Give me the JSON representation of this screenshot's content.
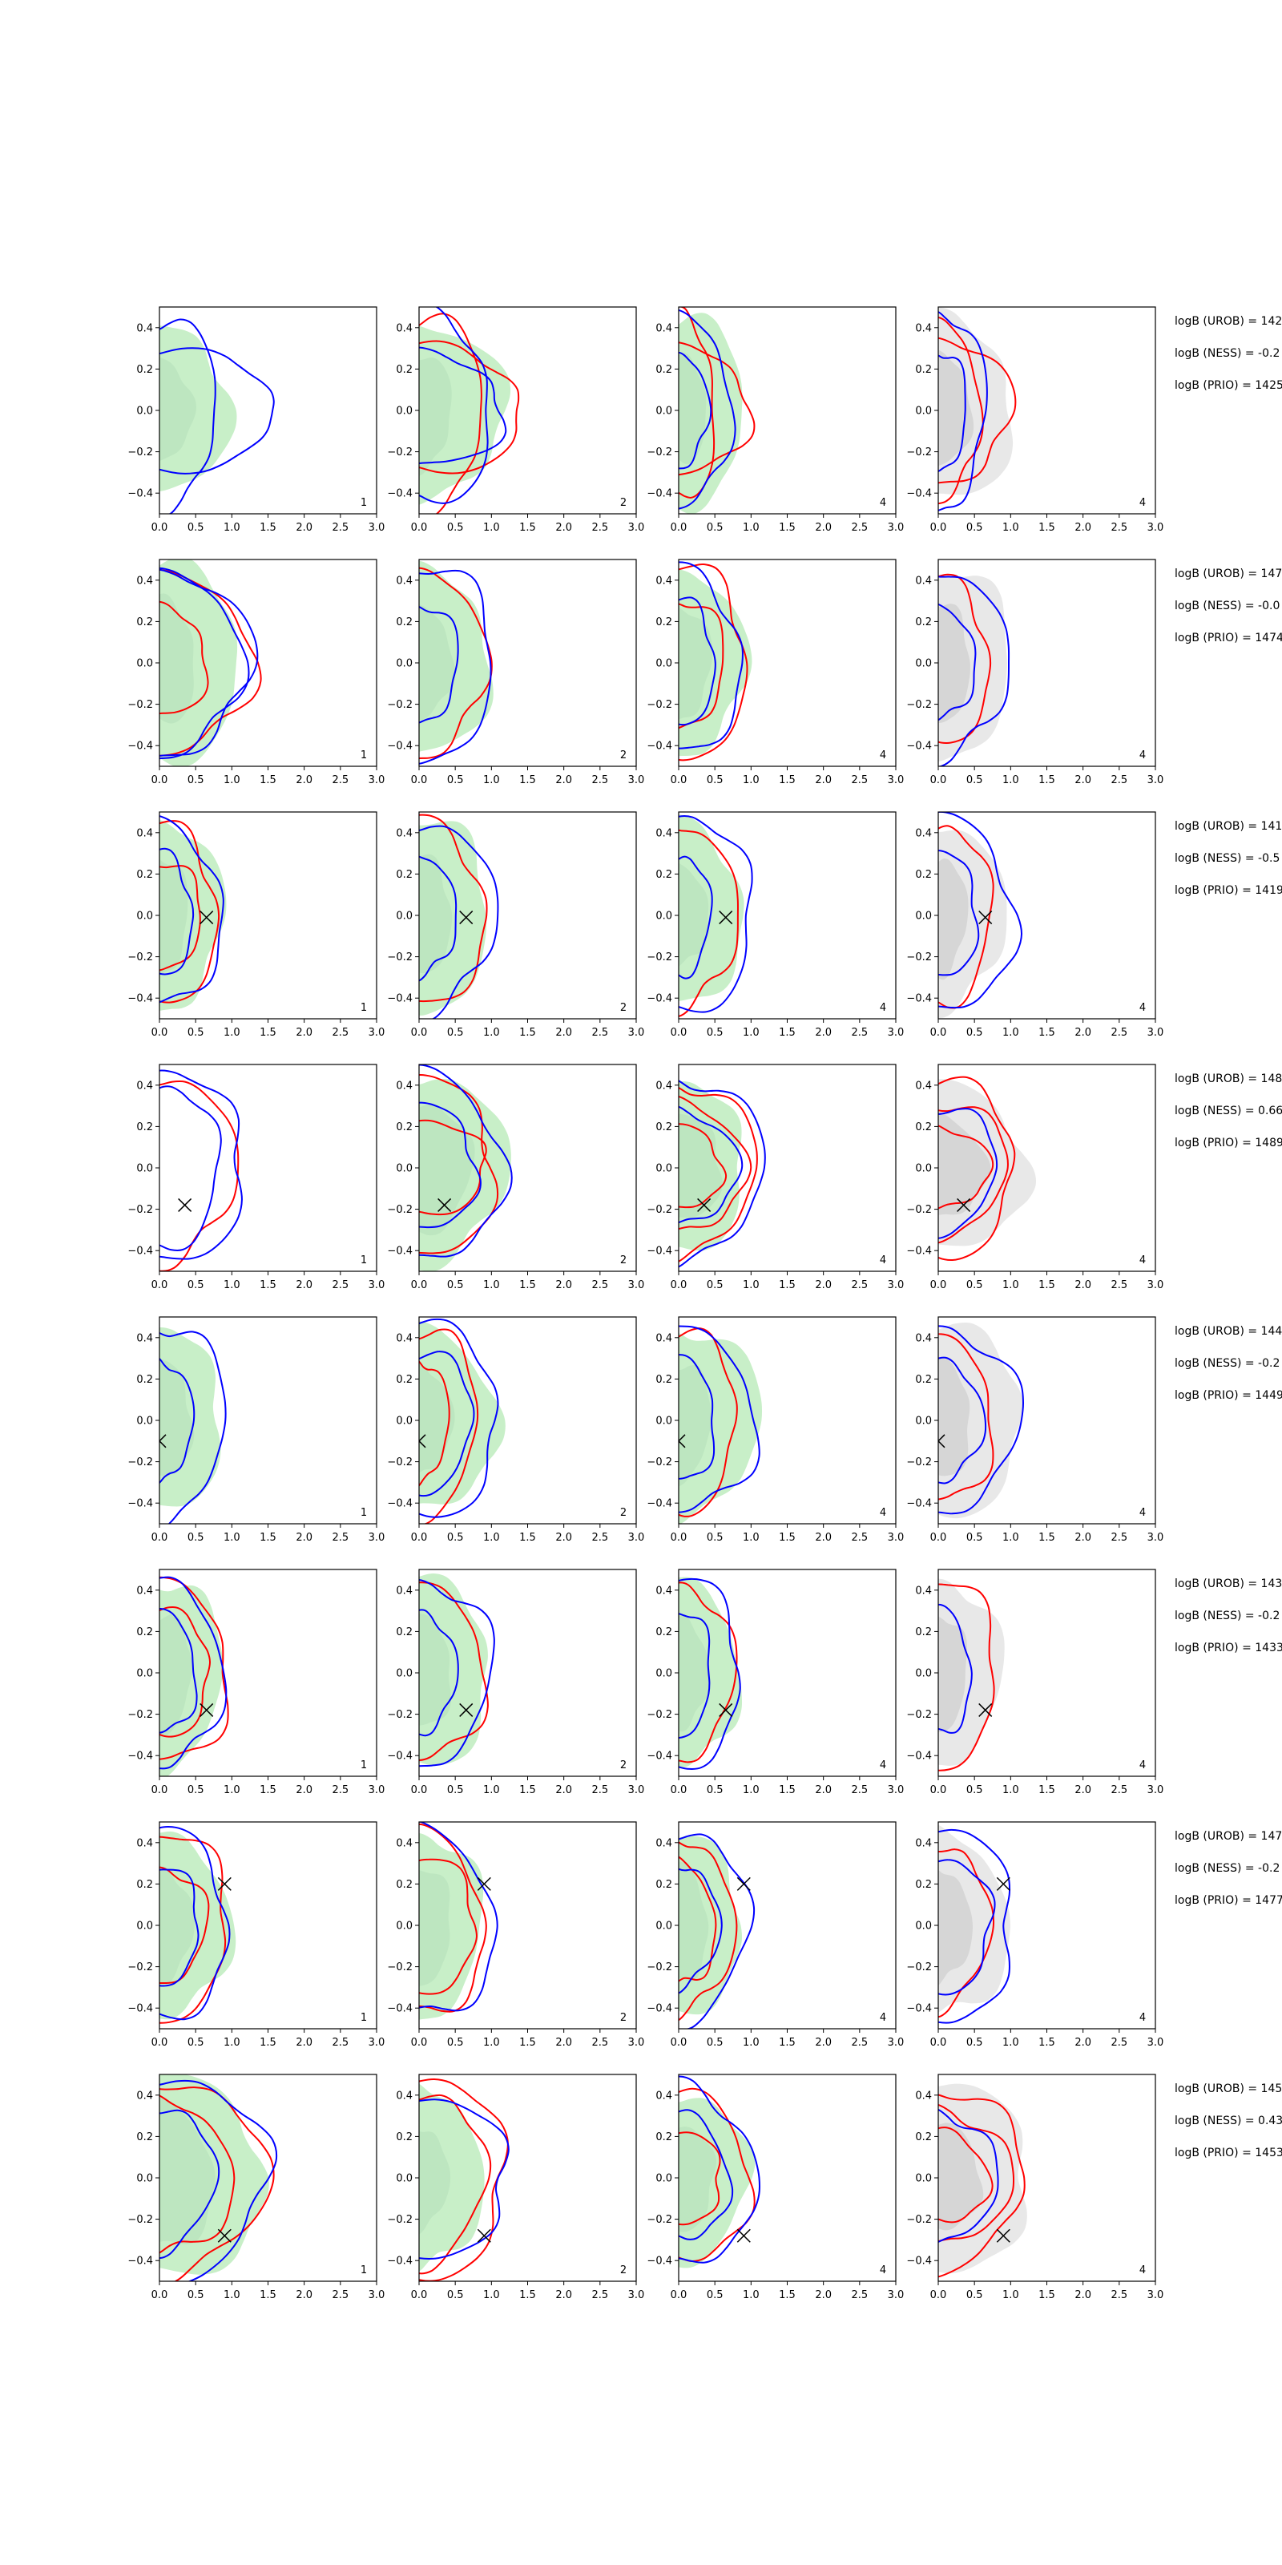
{
  "chart_data": {
    "type": "grid of 2D contour panels (8 rows x 4 columns)",
    "xlim": [
      0.0,
      3.0
    ],
    "ylim": [
      -0.5,
      0.5
    ],
    "x_ticks": [
      "0.0",
      "0.5",
      "1.0",
      "1.5",
      "2.0",
      "2.5",
      "3.0"
    ],
    "y_ticks": [
      "0.4",
      "0.2",
      "0.0",
      "−0.2",
      "−0.4"
    ],
    "grid": false,
    "legend": "none",
    "column_tags": [
      "1",
      "2",
      "4",
      "4"
    ],
    "colors": {
      "blue_contour": "#0000ff",
      "red_contour": "#ff0000",
      "green_fill": "#c8efc8",
      "green_fill_inner": "#bde6c0",
      "grey_fill": "#e8e8e8",
      "grey_fill_inner": "#d6d6d6",
      "axes": "#000000"
    },
    "rows": [
      {
        "marker": null,
        "annotations": [
          "logB (UROB) = 142",
          "logB (NESS) = -0.2",
          "logB (PRIO) = 1425"
        ],
        "panels": [
          {
            "fill": "green",
            "fill_outer": [
              0.95,
              0.4
            ],
            "fill_inner": [
              0.45,
              0.25
            ],
            "blue": [
              [
                0.8,
                0.45
              ],
              [
                1.65,
                0.28
              ]
            ],
            "red": []
          },
          {
            "fill": "green",
            "fill_outer": [
              1.15,
              0.43
            ],
            "fill_inner": [
              0.45,
              0.28
            ],
            "blue": [
              [
                1.0,
                0.46
              ],
              [
                1.15,
                0.28
              ]
            ],
            "red": [
              [
                0.9,
                0.46
              ],
              [
                1.45,
                0.3
              ]
            ]
          },
          {
            "fill": "green",
            "fill_outer": [
              0.9,
              0.45
            ],
            "fill_inner": [
              0.4,
              0.25
            ],
            "blue": [
              [
                0.7,
                0.48
              ],
              [
                0.4,
                0.28
              ]
            ],
            "red": [
              [
                0.5,
                0.45
              ],
              [
                0.95,
                0.32
              ]
            ]
          },
          {
            "fill": "grey",
            "fill_outer": [
              1.0,
              0.45
            ],
            "fill_inner": [
              0.45,
              0.28
            ],
            "blue": [
              [
                0.65,
                0.48
              ],
              [
                0.4,
                0.28
              ]
            ],
            "red": [
              [
                0.55,
                0.45
              ],
              [
                1.0,
                0.35
              ]
            ]
          }
        ]
      },
      {
        "marker": null,
        "annotations": [
          "logB (UROB) = 147",
          "logB (NESS) = -0.0",
          "logB (PRIO) = 1474"
        ],
        "panels": [
          {
            "fill": "green",
            "fill_outer": [
              1.1,
              0.47
            ],
            "fill_inner": [
              0.5,
              0.3
            ],
            "blue": [
              [
                1.1,
                0.46
              ],
              [
                1.25,
                0.45
              ]
            ],
            "red": [
              [
                0.65,
                0.27
              ],
              [
                1.25,
                0.45
              ]
            ]
          },
          {
            "fill": "green",
            "fill_outer": [
              0.95,
              0.46
            ],
            "fill_inner": [
              0.45,
              0.28
            ],
            "blue": [
              [
                0.55,
                0.28
              ],
              [
                1.05,
                0.46
              ]
            ],
            "red": [
              [
                0.9,
                0.46
              ]
            ]
          },
          {
            "fill": "green",
            "fill_outer": [
              0.9,
              0.45
            ],
            "fill_inner": [
              0.45,
              0.27
            ],
            "blue": [
              [
                0.5,
                0.3
              ],
              [
                0.85,
                0.45
              ]
            ],
            "red": [
              [
                0.65,
                0.3
              ],
              [
                0.95,
                0.46
              ]
            ]
          },
          {
            "fill": "grey",
            "fill_outer": [
              1.0,
              0.45
            ],
            "fill_inner": [
              0.45,
              0.28
            ],
            "blue": [
              [
                0.5,
                0.28
              ],
              [
                0.95,
                0.46
              ]
            ],
            "red": [
              [
                0.7,
                0.4
              ]
            ]
          }
        ]
      },
      {
        "marker": [
          0.65,
          -0.01
        ],
        "annotations": [
          "logB (UROB) = 141",
          "logB (NESS) = -0.5",
          "logB (PRIO) = 1419"
        ],
        "panels": [
          {
            "fill": "green",
            "fill_outer": [
              0.85,
              0.46
            ],
            "fill_inner": [
              0.4,
              0.28
            ],
            "blue": [
              [
                0.45,
                0.3
              ],
              [
                0.85,
                0.45
              ]
            ],
            "red": [
              [
                0.6,
                0.25
              ],
              [
                0.8,
                0.43
              ]
            ]
          },
          {
            "fill": "green",
            "fill_outer": [
              0.95,
              0.46
            ],
            "fill_inner": [
              0.45,
              0.28
            ],
            "blue": [
              [
                0.5,
                0.3
              ],
              [
                1.05,
                0.46
              ]
            ],
            "red": [
              [
                0.9,
                0.45
              ]
            ]
          },
          {
            "fill": "green",
            "fill_outer": [
              0.85,
              0.45
            ],
            "fill_inner": [
              0.4,
              0.25
            ],
            "blue": [
              [
                0.45,
                0.28
              ],
              [
                1.05,
                0.46
              ]
            ],
            "red": [
              [
                0.8,
                0.45
              ]
            ]
          },
          {
            "fill": "grey",
            "fill_outer": [
              0.9,
              0.45
            ],
            "fill_inner": [
              0.4,
              0.28
            ],
            "blue": [
              [
                0.55,
                0.3
              ],
              [
                1.05,
                0.47
              ]
            ],
            "red": [
              [
                0.75,
                0.42
              ]
            ]
          }
        ]
      },
      {
        "marker": [
          0.35,
          -0.18
        ],
        "annotations": [
          "logB (UROB) = 148",
          "logB (NESS) = 0.66",
          "logB (PRIO) = 1489"
        ],
        "panels": [
          {
            "fill": "none",
            "fill_outer": null,
            "fill_inner": null,
            "blue": [
              [
                0.85,
                0.38
              ],
              [
                1.2,
                0.45
              ]
            ],
            "red": [
              [
                1.05,
                0.45
              ]
            ]
          },
          {
            "fill": "green",
            "fill_outer": [
              1.2,
              0.45
            ],
            "fill_inner": [
              0.75,
              0.3
            ],
            "blue": [
              [
                0.8,
                0.3
              ],
              [
                1.15,
                0.46
              ]
            ],
            "red": [
              [
                0.95,
                0.22
              ],
              [
                1.05,
                0.43
              ]
            ]
          },
          {
            "fill": "green",
            "fill_outer": [
              0.9,
              0.4
            ],
            "fill_inner": [
              0.6,
              0.25
            ],
            "blue": [
              [
                0.8,
                0.28
              ],
              [
                1.15,
                0.45
              ]
            ],
            "red": [
              [
                0.6,
                0.2
              ],
              [
                0.9,
                0.32
              ],
              [
                1.05,
                0.42
              ]
            ]
          },
          {
            "fill": "grey",
            "fill_outer": [
              1.2,
              0.4
            ],
            "fill_inner": [
              0.65,
              0.25
            ],
            "blue": [
              [
                0.8,
                0.3
              ]
            ],
            "red": [
              [
                0.7,
                0.2
              ],
              [
                0.95,
                0.32
              ],
              [
                1.05,
                0.42
              ]
            ]
          }
        ]
      },
      {
        "marker": [
          0.0,
          -0.1
        ],
        "annotations": [
          "logB (UROB) = 144",
          "logB (NESS) = -0.2",
          "logB (PRIO) = 1449"
        ],
        "panels": [
          {
            "fill": "green",
            "fill_outer": [
              0.85,
              0.43
            ],
            "fill_inner": [
              0.45,
              0.28
            ],
            "blue": [
              [
                0.45,
                0.3
              ],
              [
                0.9,
                0.48
              ]
            ],
            "red": []
          },
          {
            "fill": "green",
            "fill_outer": [
              1.05,
              0.44
            ],
            "fill_inner": [
              0.45,
              0.27
            ],
            "blue": [
              [
                0.75,
                0.33
              ],
              [
                1.1,
                0.46
              ]
            ],
            "red": [
              [
                0.4,
                0.3
              ],
              [
                0.8,
                0.45
              ]
            ]
          },
          {
            "fill": "green",
            "fill_outer": [
              1.1,
              0.46
            ],
            "fill_inner": [
              0.45,
              0.28
            ],
            "blue": [
              [
                0.5,
                0.3
              ],
              [
                1.05,
                0.45
              ]
            ],
            "red": [
              [
                0.8,
                0.43
              ]
            ]
          },
          {
            "fill": "grey",
            "fill_outer": [
              1.15,
              0.45
            ],
            "fill_inner": [
              0.45,
              0.28
            ],
            "blue": [
              [
                0.6,
                0.3
              ],
              [
                1.1,
                0.45
              ]
            ],
            "red": [
              [
                0.75,
                0.4
              ]
            ]
          }
        ]
      },
      {
        "marker": [
          0.65,
          -0.18
        ],
        "annotations": [
          "logB (UROB) = 143",
          "logB (NESS) = -0.2",
          "logB (PRIO) = 1433"
        ],
        "panels": [
          {
            "fill": "green",
            "fill_outer": [
              0.85,
              0.46
            ],
            "fill_inner": [
              0.45,
              0.28
            ],
            "blue": [
              [
                0.5,
                0.3
              ],
              [
                0.85,
                0.46
              ]
            ],
            "red": [
              [
                0.7,
                0.3
              ],
              [
                0.95,
                0.44
              ]
            ]
          },
          {
            "fill": "green",
            "fill_outer": [
              0.95,
              0.45
            ],
            "fill_inner": [
              0.45,
              0.27
            ],
            "blue": [
              [
                0.5,
                0.3
              ],
              [
                1.0,
                0.45
              ]
            ],
            "red": [
              [
                0.9,
                0.43
              ]
            ]
          },
          {
            "fill": "green",
            "fill_outer": [
              0.8,
              0.46
            ],
            "fill_inner": [
              0.4,
              0.28
            ],
            "blue": [
              [
                0.45,
                0.3
              ],
              [
                0.85,
                0.45
              ]
            ],
            "red": [
              [
                0.75,
                0.43
              ]
            ]
          },
          {
            "fill": "grey",
            "fill_outer": [
              0.85,
              0.45
            ],
            "fill_inner": [
              0.4,
              0.28
            ],
            "blue": [
              [
                0.45,
                0.3
              ]
            ],
            "red": [
              [
                0.8,
                0.45
              ]
            ]
          }
        ]
      },
      {
        "marker": [
          0.9,
          0.2
        ],
        "annotations": [
          "logB (UROB) = 147",
          "logB (NESS) = -0.2",
          "logB (PRIO) = 1477"
        ],
        "panels": [
          {
            "fill": "green",
            "fill_outer": [
              0.95,
              0.45
            ],
            "fill_inner": [
              0.45,
              0.28
            ],
            "blue": [
              [
                0.55,
                0.28
              ],
              [
                0.95,
                0.45
              ]
            ],
            "red": [
              [
                0.65,
                0.28
              ],
              [
                0.95,
                0.45
              ]
            ]
          },
          {
            "fill": "green",
            "fill_outer": [
              0.85,
              0.45
            ],
            "fill_inner": [
              0.45,
              0.28
            ],
            "blue": [
              [
                1.05,
                0.45
              ]
            ],
            "red": [
              [
                0.8,
                0.32
              ],
              [
                0.9,
                0.44
              ]
            ]
          },
          {
            "fill": "green",
            "fill_outer": [
              0.85,
              0.42
            ],
            "fill_inner": [
              0.4,
              0.28
            ],
            "blue": [
              [
                0.55,
                0.3
              ],
              [
                0.95,
                0.46
              ]
            ],
            "red": [
              [
                0.5,
                0.3
              ],
              [
                0.75,
                0.43
              ]
            ]
          },
          {
            "fill": "grey",
            "fill_outer": [
              0.95,
              0.45
            ],
            "fill_inner": [
              0.45,
              0.28
            ],
            "blue": [
              [
                0.75,
                0.32
              ],
              [
                1.05,
                0.46
              ]
            ],
            "red": [
              [
                0.7,
                0.4
              ]
            ]
          }
        ]
      },
      {
        "marker": [
          0.9,
          -0.28
        ],
        "annotations": [
          "logB (UROB) = 145",
          "logB (NESS) = 0.43",
          "logB (PRIO) = 1453"
        ],
        "panels": [
          {
            "fill": "green",
            "fill_outer": [
              1.45,
              0.47
            ],
            "fill_inner": [
              0.75,
              0.35
            ],
            "blue": [
              [
                0.75,
                0.35
              ],
              [
                1.5,
                0.48
              ]
            ],
            "red": [
              [
                1.0,
                0.38
              ],
              [
                1.45,
                0.48
              ]
            ]
          },
          {
            "fill": "green",
            "fill_outer": [
              0.85,
              0.45
            ],
            "fill_inner": [
              0.4,
              0.25
            ],
            "blue": [
              [
                1.25,
                0.38
              ]
            ],
            "red": [
              [
                0.9,
                0.42
              ],
              [
                1.2,
                0.48
              ]
            ]
          },
          {
            "fill": "green",
            "fill_outer": [
              0.95,
              0.4
            ],
            "fill_inner": [
              0.5,
              0.25
            ],
            "blue": [
              [
                0.7,
                0.3
              ],
              [
                1.05,
                0.44
              ]
            ],
            "red": [
              [
                0.6,
                0.22
              ],
              [
                1.0,
                0.4
              ]
            ]
          },
          {
            "fill": "grey",
            "fill_outer": [
              1.25,
              0.45
            ],
            "fill_inner": [
              0.6,
              0.25
            ],
            "blue": [
              [
                0.8,
                0.32
              ]
            ],
            "red": [
              [
                0.7,
                0.22
              ],
              [
                1.0,
                0.33
              ],
              [
                1.15,
                0.44
              ]
            ]
          }
        ]
      }
    ]
  }
}
